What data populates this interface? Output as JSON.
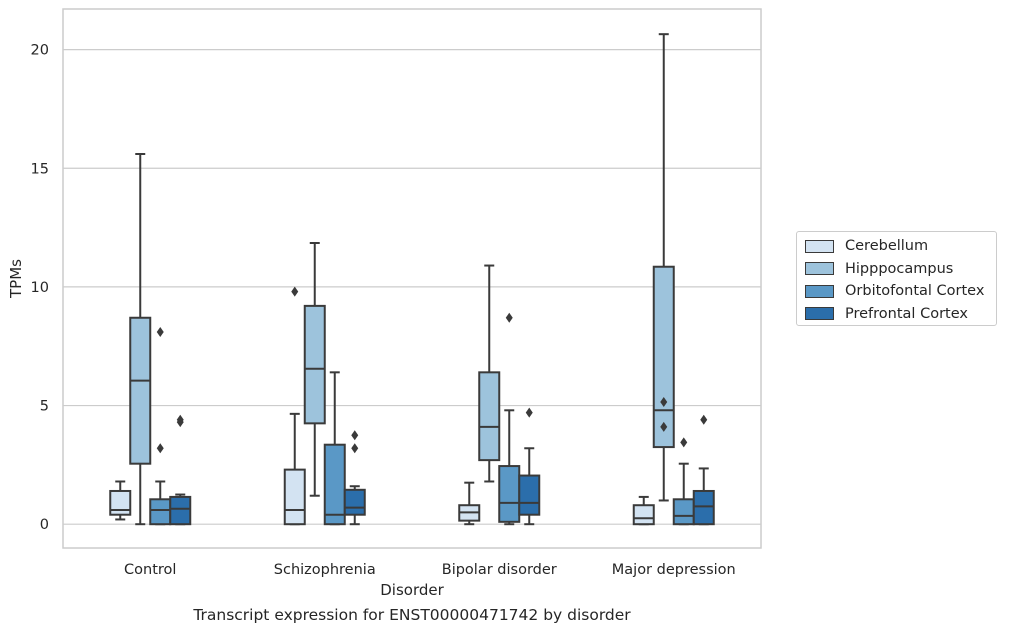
{
  "caption": "Transcript expression for ENST00000471742 by disorder",
  "chart_data": {
    "type": "box",
    "xlabel": "Disorder",
    "ylabel": "TPMs",
    "ylim": [
      -1,
      21.7
    ],
    "yticks": [
      0,
      5,
      10,
      15,
      20
    ],
    "grid": true,
    "legend_position": "right",
    "categories": [
      "Control",
      "Schizophrenia",
      "Bipolar disorder",
      "Major depression"
    ],
    "series": [
      {
        "name": "Cerebellum",
        "color": "#d3e3f2",
        "boxes": [
          {
            "min": 0.2,
            "q1": 0.4,
            "median": 0.6,
            "q3": 1.4,
            "max": 1.8,
            "outliers": []
          },
          {
            "min": 0.0,
            "q1": 0.0,
            "median": 0.6,
            "q3": 2.3,
            "max": 4.65,
            "outliers": [
              9.8
            ]
          },
          {
            "min": 0.0,
            "q1": 0.15,
            "median": 0.5,
            "q3": 0.8,
            "max": 1.75,
            "outliers": []
          },
          {
            "min": 0.0,
            "q1": 0.0,
            "median": 0.25,
            "q3": 0.8,
            "max": 1.15,
            "outliers": []
          }
        ]
      },
      {
        "name": "Hipppocampus",
        "color": "#9dc3dc",
        "boxes": [
          {
            "min": 0.0,
            "q1": 2.55,
            "median": 6.05,
            "q3": 8.7,
            "max": 15.6,
            "outliers": []
          },
          {
            "min": 1.2,
            "q1": 4.25,
            "median": 6.55,
            "q3": 9.2,
            "max": 11.85,
            "outliers": []
          },
          {
            "min": 1.8,
            "q1": 2.7,
            "median": 4.1,
            "q3": 6.4,
            "max": 10.9,
            "outliers": []
          },
          {
            "min": 1.0,
            "q1": 3.25,
            "median": 4.8,
            "q3": 10.85,
            "max": 20.65,
            "outliers": [
              4.1,
              5.15
            ]
          }
        ]
      },
      {
        "name": "Orbitofontal Cortex",
        "color": "#5a98c6",
        "boxes": [
          {
            "min": 0.0,
            "q1": 0.0,
            "median": 0.6,
            "q3": 1.05,
            "max": 1.8,
            "outliers": [
              3.2,
              8.1
            ]
          },
          {
            "min": 0.0,
            "q1": 0.0,
            "median": 0.4,
            "q3": 3.35,
            "max": 6.4,
            "outliers": []
          },
          {
            "min": 0.0,
            "q1": 0.1,
            "median": 0.9,
            "q3": 2.45,
            "max": 4.8,
            "outliers": [
              8.7
            ]
          },
          {
            "min": 0.0,
            "q1": 0.0,
            "median": 0.35,
            "q3": 1.05,
            "max": 2.55,
            "outliers": [
              3.45
            ]
          }
        ]
      },
      {
        "name": "Prefrontal Cortex",
        "color": "#2b6eab",
        "boxes": [
          {
            "min": 0.0,
            "q1": 0.0,
            "median": 0.65,
            "q3": 1.15,
            "max": 1.25,
            "outliers": [
              4.3,
              4.4
            ]
          },
          {
            "min": 0.0,
            "q1": 0.4,
            "median": 0.7,
            "q3": 1.45,
            "max": 1.6,
            "outliers": [
              3.2,
              3.75
            ]
          },
          {
            "min": 0.0,
            "q1": 0.4,
            "median": 0.9,
            "q3": 2.05,
            "max": 3.2,
            "outliers": [
              4.7
            ]
          },
          {
            "min": 0.0,
            "q1": 0.0,
            "median": 0.75,
            "q3": 1.4,
            "max": 2.35,
            "outliers": [
              4.4
            ]
          }
        ]
      }
    ]
  }
}
